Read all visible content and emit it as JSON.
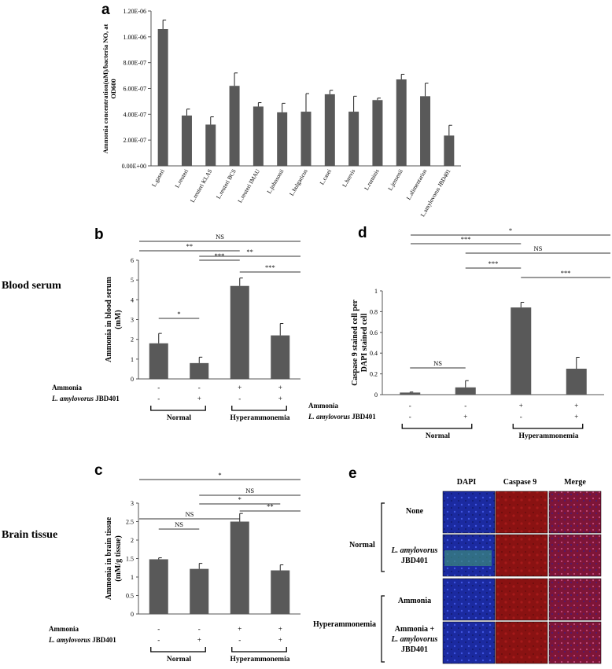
{
  "panels": {
    "a": {
      "letter": "a"
    },
    "b": {
      "letter": "b",
      "row_label": "Blood serum"
    },
    "c": {
      "letter": "c",
      "row_label": "Brain tissue"
    },
    "d": {
      "letter": "d"
    },
    "e": {
      "letter": "e"
    }
  },
  "chart_data": [
    {
      "id": "a",
      "type": "bar",
      "ylabel_line1": "Ammonia concentration(uM)/bacteria NO, at",
      "ylabel_line2": "OD600",
      "ylim": [
        0,
        1.2e-06
      ],
      "yticks": [
        "0.00E+00",
        "2.00E-07",
        "4.00E-07",
        "6.00E-07",
        "8.00E-07",
        "1.00E-06",
        "1.20E-06"
      ],
      "categories": [
        "L.gaseri",
        "L.reuteri",
        "L.reuteri KLAS",
        "L.reuteri BCS",
        "L.reuteri IMAU",
        "L.johnsonii",
        "L.bulgaricus",
        "L.casei",
        "L.brevis",
        "L.ruminis",
        "L.jensenii",
        "L.alimentarius",
        "L.amylovorus JBD401"
      ],
      "values": [
        1.06e-06,
        3.9e-07,
        3.2e-07,
        6.2e-07,
        4.6e-07,
        4.15e-07,
        4.2e-07,
        5.55e-07,
        4.2e-07,
        5.1e-07,
        6.7e-07,
        5.4e-07,
        2.35e-07
      ],
      "errors": [
        7e-08,
        5e-08,
        6e-08,
        1e-07,
        3e-08,
        7e-08,
        1.4e-07,
        3e-08,
        1.2e-07,
        1.5e-08,
        4e-08,
        1e-07,
        8e-08
      ],
      "grid": false
    },
    {
      "id": "b",
      "type": "bar",
      "ylabel_line1": "Ammonia in blood serum",
      "ylabel_line2": "(mM)",
      "ylim": [
        0,
        6
      ],
      "yticks": [
        "0",
        "1",
        "2",
        "3",
        "4",
        "5",
        "6"
      ],
      "values": [
        1.8,
        0.8,
        4.7,
        2.2
      ],
      "errors": [
        0.5,
        0.3,
        0.4,
        0.6
      ],
      "ammonia": [
        "-",
        "-",
        "+",
        "+"
      ],
      "jbd401": [
        "-",
        "+",
        "-",
        "+"
      ],
      "sig": [
        "NS",
        "**",
        "***",
        "**",
        "***",
        "*"
      ],
      "grid": false
    },
    {
      "id": "c",
      "type": "bar",
      "ylabel_line1": "Ammonia in brain tissue",
      "ylabel_line2": "(mM/g tissue)",
      "ylim": [
        0,
        3
      ],
      "yticks": [
        "0",
        "0.5",
        "1",
        "1.5",
        "2",
        "2.5",
        "3"
      ],
      "values": [
        1.48,
        1.22,
        2.5,
        1.18
      ],
      "errors": [
        0.04,
        0.15,
        0.22,
        0.15
      ],
      "ammonia": [
        "-",
        "-",
        "+",
        "+"
      ],
      "jbd401": [
        "-",
        "+",
        "-",
        "+"
      ],
      "sig": [
        "NS",
        "*",
        "NS",
        "*",
        "**",
        "NS"
      ],
      "grid": false
    },
    {
      "id": "d",
      "type": "bar",
      "ylabel_line1": "Caspase 9 stained cell per",
      "ylabel_line2": "DAPI stained cell",
      "ylim": [
        0,
        1
      ],
      "yticks": [
        "0",
        "0.2",
        "0.4",
        "0.6",
        "0.8",
        "1"
      ],
      "values": [
        0.02,
        0.07,
        0.84,
        0.25
      ],
      "errors": [
        0.005,
        0.065,
        0.05,
        0.11
      ],
      "ammonia": [
        "-",
        "-",
        "+",
        "+"
      ],
      "jbd401": [
        "-",
        "+",
        "-",
        "+"
      ],
      "sig": [
        "*",
        "***",
        "NS",
        "***",
        "***",
        "NS"
      ],
      "grid": false
    }
  ],
  "factor_labels": {
    "ammonia": "Ammonia",
    "species_italic": "L. amylovorus",
    "strain": "JBD401"
  },
  "groups": {
    "normal": "Normal",
    "hyper": "Hyperammonemia"
  },
  "panel_e": {
    "columns": [
      "DAPI",
      "Caspase 9",
      "Merge"
    ],
    "group_normal": "Normal",
    "group_hyper": "Hyperammonemia",
    "rows": [
      {
        "line1": "None",
        "line1_italic": "",
        "line2": ""
      },
      {
        "line1": "",
        "line1_italic": "L. amylovorus",
        "line2": "JBD401"
      },
      {
        "line1": "Ammonia",
        "line1_italic": "",
        "line2": ""
      },
      {
        "line1": "Ammonia +",
        "line1_italic": "L. amylovorus",
        "line2": "JBD401"
      }
    ],
    "colors": {
      "dapi": "#1a2a9e",
      "caspase": "#8e1212",
      "merge": "#7a1636"
    }
  }
}
